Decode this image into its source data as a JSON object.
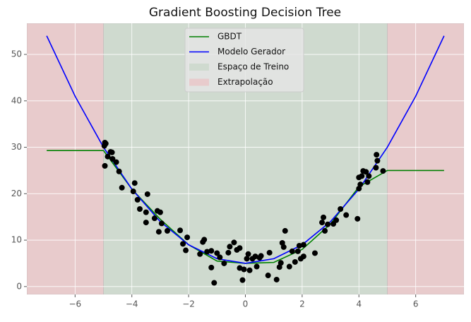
{
  "chart_data": {
    "type": "line",
    "title": "Gradient Boosting Decision Tree",
    "xlim": [
      -7.7,
      7.7
    ],
    "ylim": [
      -1.7,
      56.7
    ],
    "xticks": [
      {
        "value": -6,
        "label": "−6"
      },
      {
        "value": -4,
        "label": "−4"
      },
      {
        "value": -2,
        "label": "−2"
      },
      0,
      2,
      4,
      6
    ],
    "yticks": [
      0,
      10,
      20,
      30,
      40,
      50
    ],
    "grid": true,
    "legend": "upper center",
    "spans": [
      {
        "name": "Espaço de Treino",
        "color": "#cfdacf",
        "ranges": [
          [
            -5,
            5
          ]
        ]
      },
      {
        "name": "Extrapolação",
        "color": "#e8cbcc",
        "ranges": [
          [
            -7.7,
            -5
          ],
          [
            5,
            7.7
          ]
        ]
      }
    ],
    "series": [
      {
        "name": "GBDT",
        "color": "#008000",
        "x": [
          -7,
          -6,
          -5,
          -4,
          -3,
          -2,
          -1,
          0,
          1,
          2,
          3,
          4,
          5,
          6,
          7
        ],
        "values": [
          29.3,
          29.3,
          29.3,
          21,
          14.5,
          9,
          5.5,
          5,
          5.2,
          8,
          13.5,
          21.5,
          25,
          25,
          25
        ]
      },
      {
        "name": "Modelo Gerador",
        "color": "#0000ff",
        "x": [
          -7,
          -6,
          -5,
          -4,
          -3,
          -2,
          -1,
          0,
          1,
          2,
          3,
          4,
          5,
          6,
          7
        ],
        "values": [
          54,
          41,
          30,
          21,
          14,
          9,
          6,
          5,
          6,
          9,
          14,
          21,
          30,
          41,
          54
        ]
      }
    ],
    "scatter": {
      "color": "#000000",
      "x": [
        -4.97,
        -4.95,
        -4.92,
        -4.95,
        -4.85,
        -4.75,
        -4.7,
        -4.68,
        -4.55,
        -4.45,
        -4.35,
        -3.9,
        -3.95,
        -3.8,
        -3.72,
        -3.5,
        -3.5,
        -3.45,
        -3.2,
        -3.1,
        -3.05,
        -3.0,
        -2.95,
        -2.75,
        -2.3,
        -2.2,
        -2.1,
        -2.05,
        -1.6,
        -1.5,
        -1.45,
        -1.35,
        -1.2,
        -1.2,
        -1.1,
        -1.0,
        -0.9,
        -0.75,
        -0.6,
        -0.55,
        -0.4,
        -0.3,
        -0.2,
        -0.2,
        -0.1,
        -0.05,
        0.05,
        0.1,
        0.15,
        0.25,
        0.35,
        0.4,
        0.5,
        0.55,
        0.8,
        0.85,
        1.1,
        1.2,
        1.25,
        1.3,
        1.35,
        1.4,
        1.55,
        1.65,
        1.75,
        1.85,
        1.9,
        1.95,
        2.05,
        2.05,
        2.45,
        2.7,
        2.75,
        2.8,
        2.9,
        3.1,
        3.2,
        3.35,
        3.55,
        3.95,
        4.0,
        4.05,
        4.0,
        4.1,
        4.15,
        4.25,
        4.3,
        4.35,
        4.6,
        4.65,
        4.62,
        4.85
      ],
      "values": [
        30.3,
        31,
        30.8,
        26,
        28,
        29,
        28.9,
        27.5,
        26.8,
        24.8,
        21.3,
        22.3,
        20.5,
        18.7,
        16.7,
        16,
        13.8,
        19.9,
        14.7,
        16.3,
        11.8,
        16,
        13.6,
        12,
        12.1,
        9.2,
        7.8,
        10.6,
        7,
        9.6,
        10.1,
        7.5,
        7.7,
        4.1,
        0.8,
        7.2,
        6.3,
        5,
        7.3,
        8.6,
        9.5,
        7.9,
        8.3,
        4.0,
        1.4,
        3.7,
        6,
        7,
        3.5,
        6,
        6.5,
        4.3,
        6.2,
        6.6,
        2.4,
        7.3,
        1.5,
        4.2,
        5.1,
        9.4,
        8.5,
        12,
        4.3,
        7.6,
        5.3,
        7.6,
        8.8,
        6.0,
        6.5,
        9.0,
        7.2,
        13.8,
        14.9,
        12,
        13.4,
        13.5,
        14.3,
        16.7,
        15.4,
        14.6,
        21.1,
        22,
        23.5,
        23.8,
        24.9,
        24.7,
        22.5,
        23.8,
        25.6,
        27.1,
        28.4,
        24.9
      ]
    }
  }
}
